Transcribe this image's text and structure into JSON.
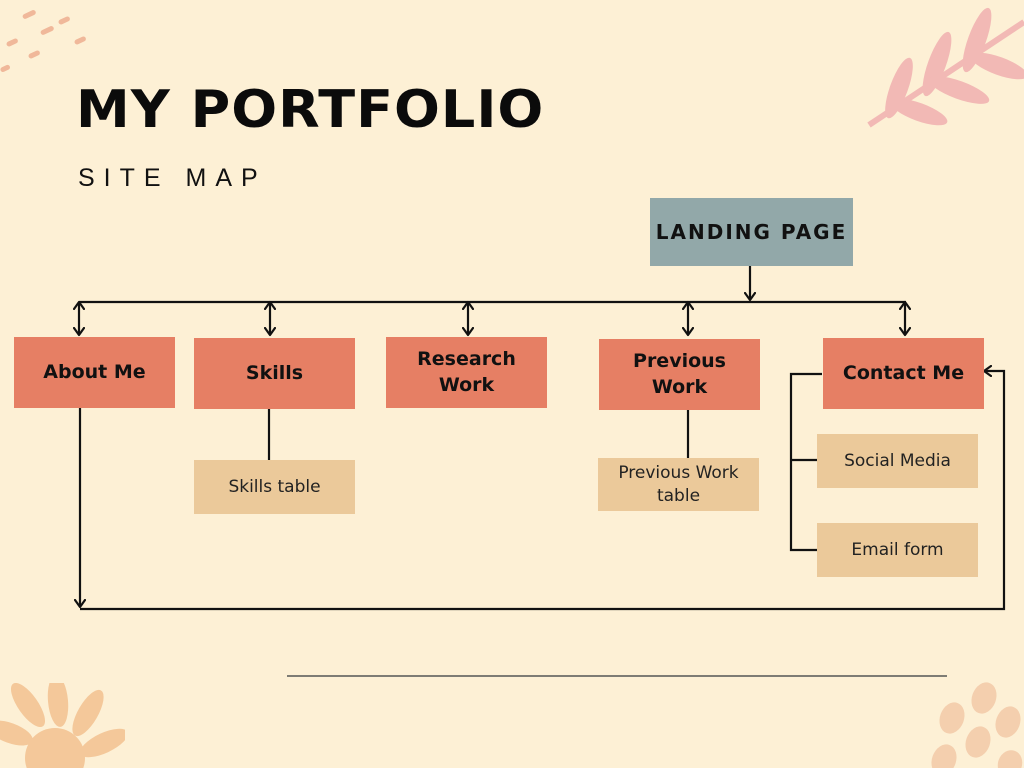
{
  "header": {
    "title": "MY PORTFOLIO",
    "subtitle": "SITE MAP"
  },
  "sitemap": {
    "root": "LANDING PAGE",
    "pages": {
      "about": "About Me",
      "skills": "Skills",
      "research": "Research Work",
      "previous": "Previous Work",
      "contact": "Contact Me"
    },
    "subpages": {
      "skills_table": "Skills table",
      "previous_table": "Previous Work table",
      "social_media": "Social Media",
      "email_form": "Email form"
    }
  },
  "colors": {
    "background": "#fdf0d5",
    "root_box": "#92a8a9",
    "page_box": "#e67f64",
    "subpage_box": "#ebc99a",
    "connector": "#111111"
  }
}
